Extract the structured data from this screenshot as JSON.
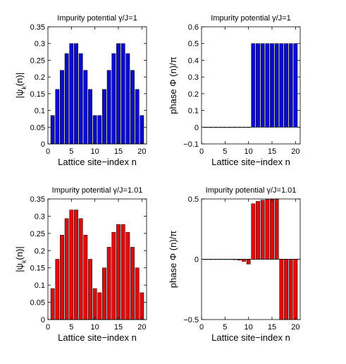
{
  "chart_data": [
    {
      "type": "bar",
      "title": "Impurity potential γ/J=1",
      "xlabel": "Lattice site−index n",
      "ylabel": "|ψk(n)|",
      "ylabel_main": "|ψ",
      "ylabel_sub": "k",
      "ylabel_tail": "(n)|",
      "x": [
        1,
        2,
        3,
        4,
        5,
        6,
        7,
        8,
        9,
        10,
        11,
        12,
        13,
        14,
        15,
        16,
        17,
        18,
        19,
        20
      ],
      "values": [
        0.085,
        0.163,
        0.22,
        0.27,
        0.3,
        0.3,
        0.27,
        0.22,
        0.163,
        0.085,
        0.085,
        0.163,
        0.22,
        0.27,
        0.3,
        0.3,
        0.27,
        0.22,
        0.163,
        0.085
      ],
      "xlim": [
        0,
        21
      ],
      "ylim": [
        0,
        0.35
      ],
      "xticks": [
        0,
        5,
        10,
        15,
        20
      ],
      "xtick_labels": [
        "0",
        "5",
        "10",
        "15",
        "20"
      ],
      "yticks": [
        0,
        0.05,
        0.1,
        0.15,
        0.2,
        0.25,
        0.3,
        0.35
      ],
      "ytick_labels": [
        "0",
        "0.05",
        "0.1",
        "0.15",
        "0.2",
        "0.25",
        "0.3",
        "0.35"
      ],
      "color": "#0a0ad0",
      "grid": false
    },
    {
      "type": "bar",
      "title": "Impurity potential γ/J=1",
      "xlabel": "Lattice site−index n",
      "ylabel": "phase Φ (n)/π",
      "x": [
        1,
        2,
        3,
        4,
        5,
        6,
        7,
        8,
        9,
        10,
        11,
        12,
        13,
        14,
        15,
        16,
        17,
        18,
        19,
        20
      ],
      "values": [
        0,
        0,
        0,
        0,
        0,
        0,
        0,
        0,
        0,
        0,
        0.5,
        0.5,
        0.5,
        0.5,
        0.5,
        0.5,
        0.5,
        0.5,
        0.5,
        0.5
      ],
      "xlim": [
        0,
        21
      ],
      "ylim": [
        -0.1,
        0.6
      ],
      "xticks": [
        0,
        5,
        10,
        15,
        20
      ],
      "xtick_labels": [
        "0",
        "5",
        "10",
        "15",
        "20"
      ],
      "yticks": [
        -0.1,
        0,
        0.1,
        0.2,
        0.3,
        0.4,
        0.5,
        0.6
      ],
      "ytick_labels": [
        "−0.1",
        "0",
        "0.1",
        "0.2",
        "0.3",
        "0.4",
        "0.5",
        "0.6"
      ],
      "color": "#0a0ad0",
      "grid": false
    },
    {
      "type": "bar",
      "title": "Impurity potential γ/J=1.01",
      "xlabel": "Lattice site−index n",
      "ylabel": "|ψk(n)|",
      "ylabel_main": "|ψ",
      "ylabel_sub": "k",
      "ylabel_tail": "(n)|",
      "x": [
        1,
        2,
        3,
        4,
        5,
        6,
        7,
        8,
        9,
        10,
        11,
        12,
        13,
        14,
        15,
        16,
        17,
        18,
        19,
        20
      ],
      "values": [
        0.09,
        0.175,
        0.245,
        0.293,
        0.318,
        0.318,
        0.293,
        0.245,
        0.175,
        0.09,
        0.078,
        0.15,
        0.21,
        0.253,
        0.276,
        0.276,
        0.253,
        0.21,
        0.15,
        0.078
      ],
      "xlim": [
        0,
        21
      ],
      "ylim": [
        0,
        0.35
      ],
      "xticks": [
        0,
        5,
        10,
        15,
        20
      ],
      "xtick_labels": [
        "0",
        "5",
        "10",
        "15",
        "20"
      ],
      "yticks": [
        0,
        0.05,
        0.1,
        0.15,
        0.2,
        0.25,
        0.3,
        0.35
      ],
      "ytick_labels": [
        "0",
        "0.05",
        "0.1",
        "0.15",
        "0.2",
        "0.25",
        "0.3",
        "0.35"
      ],
      "color": "#e00a0a",
      "grid": false
    },
    {
      "type": "bar",
      "title": "Impurity potential γ/J=1.01",
      "xlabel": "Lattice site−index n",
      "ylabel": "phase Φ (n)/π",
      "x": [
        1,
        2,
        3,
        4,
        5,
        6,
        7,
        8,
        9,
        10,
        11,
        12,
        13,
        14,
        15,
        16,
        17,
        18,
        19,
        20
      ],
      "values": [
        0,
        0,
        0,
        0,
        0,
        -0.002,
        -0.004,
        -0.008,
        -0.018,
        -0.04,
        0.46,
        0.48,
        0.49,
        0.495,
        0.498,
        0.5,
        -0.5,
        -0.5,
        -0.5,
        -0.5
      ],
      "xlim": [
        0,
        21
      ],
      "ylim": [
        -0.5,
        0.5
      ],
      "xticks": [
        0,
        5,
        10,
        15,
        20
      ],
      "xtick_labels": [
        "0",
        "5",
        "10",
        "15",
        "20"
      ],
      "yticks": [
        -0.5,
        0,
        0.5
      ],
      "ytick_labels": [
        "−0.5",
        "0",
        "0.5"
      ],
      "color": "#e00a0a",
      "grid": false
    }
  ]
}
